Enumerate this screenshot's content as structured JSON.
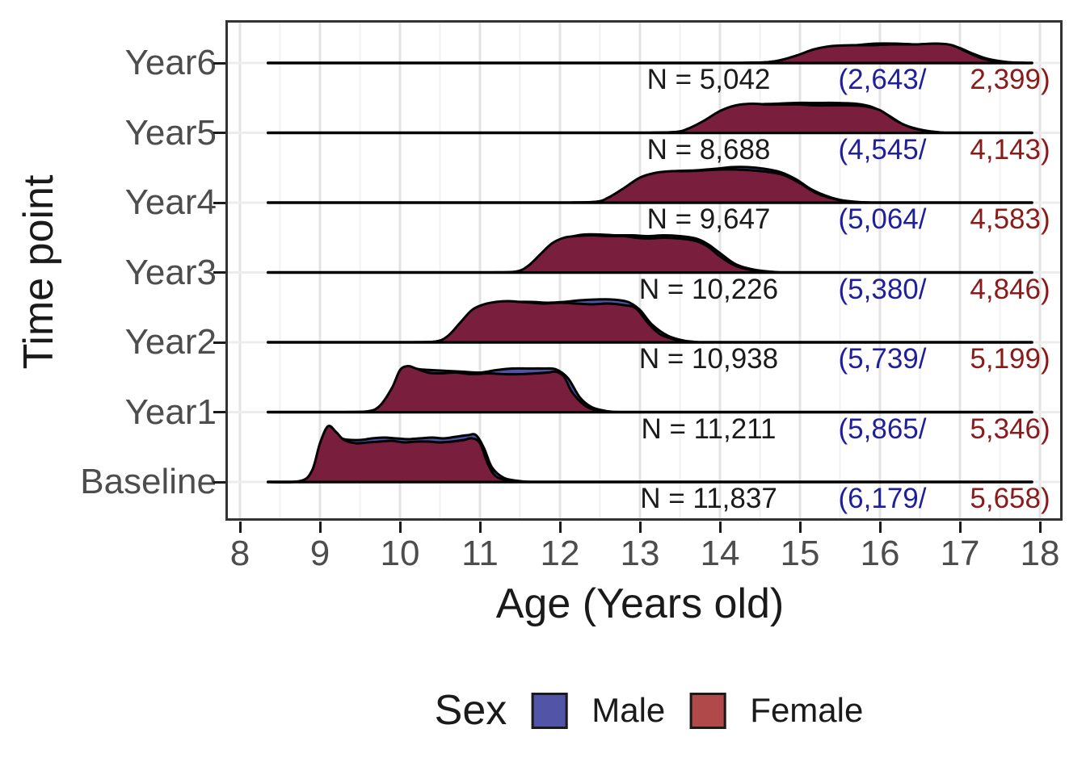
{
  "chart_data": {
    "type": "ridgeline",
    "title": "",
    "xlabel": "Age (Years old)",
    "ylabel": "Time point",
    "x_ticks": [
      "8",
      "9",
      "10",
      "11",
      "12",
      "13",
      "14",
      "15",
      "16",
      "17",
      "18"
    ],
    "x_range": [
      8,
      18
    ],
    "categories_top_to_bottom": [
      "Year6",
      "Year5",
      "Year4",
      "Year3",
      "Year2",
      "Year1",
      "Baseline"
    ],
    "grid": true,
    "legend_position": "bottom",
    "legend": {
      "title": "Sex",
      "items": [
        {
          "label": "Male",
          "color": "#5254A8"
        },
        {
          "label": "Female",
          "color": "#B04A4A"
        }
      ]
    },
    "colors": {
      "male_fill": "#5053A6",
      "female_fill": "#7A1E3D",
      "male_text": "#1F1F9C",
      "female_text": "#8B1A1A",
      "outline": "#000000",
      "axis_text": "#4D4D4D",
      "title_text": "#1A1A1A",
      "grid_major": "#E3E3E3",
      "grid_minor": "#F1F1F1",
      "grid_horizontal": "#ECECEC",
      "panel_border": "#333333"
    },
    "rows": [
      {
        "label": "Year6",
        "n": 5042,
        "male_n": 2643,
        "female_n": 2399,
        "n_label": "N = 5,042",
        "male_label": "(2,643/",
        "female_label": "2,399)",
        "age_span": [
          14.25,
          17.85
        ],
        "female_curve": [
          [
            14.25,
            0
          ],
          [
            14.6,
            1
          ],
          [
            14.78,
            4
          ],
          [
            14.98,
            10
          ],
          [
            15.18,
            17
          ],
          [
            15.4,
            21
          ],
          [
            15.65,
            22
          ],
          [
            15.9,
            22
          ],
          [
            16.15,
            23
          ],
          [
            16.45,
            23
          ],
          [
            16.7,
            24
          ],
          [
            16.9,
            22
          ],
          [
            17.1,
            13
          ],
          [
            17.3,
            5
          ],
          [
            17.55,
            1
          ],
          [
            17.85,
            0
          ]
        ],
        "male_curve": [
          [
            14.25,
            0
          ],
          [
            14.6,
            1
          ],
          [
            14.78,
            4
          ],
          [
            14.98,
            9
          ],
          [
            15.18,
            16
          ],
          [
            15.45,
            20
          ],
          [
            15.7,
            22
          ],
          [
            15.95,
            24
          ],
          [
            16.2,
            24
          ],
          [
            16.45,
            23
          ],
          [
            16.7,
            23
          ],
          [
            16.95,
            20
          ],
          [
            17.15,
            12
          ],
          [
            17.35,
            5
          ],
          [
            17.6,
            1
          ],
          [
            17.85,
            0
          ]
        ]
      },
      {
        "label": "Year5",
        "n": 8688,
        "male_n": 4545,
        "female_n": 4143,
        "n_label": "N = 8,688",
        "male_label": "(4,545/",
        "female_label": "4,143)",
        "age_span": [
          13.1,
          16.8
        ],
        "female_curve": [
          [
            13.1,
            0
          ],
          [
            13.45,
            1
          ],
          [
            13.6,
            5
          ],
          [
            13.8,
            15
          ],
          [
            14.0,
            27
          ],
          [
            14.2,
            34
          ],
          [
            14.4,
            36
          ],
          [
            14.6,
            35
          ],
          [
            14.8,
            35
          ],
          [
            15.0,
            35
          ],
          [
            15.2,
            34
          ],
          [
            15.4,
            34
          ],
          [
            15.6,
            34
          ],
          [
            15.8,
            33
          ],
          [
            16.0,
            28
          ],
          [
            16.2,
            15
          ],
          [
            16.4,
            6
          ],
          [
            16.6,
            2
          ],
          [
            16.8,
            0
          ]
        ],
        "male_curve": [
          [
            13.1,
            0
          ],
          [
            13.45,
            1
          ],
          [
            13.6,
            5
          ],
          [
            13.8,
            14
          ],
          [
            14.0,
            25
          ],
          [
            14.2,
            33
          ],
          [
            14.45,
            35
          ],
          [
            14.7,
            36
          ],
          [
            14.95,
            37
          ],
          [
            15.2,
            37
          ],
          [
            15.45,
            37
          ],
          [
            15.7,
            36
          ],
          [
            15.9,
            32
          ],
          [
            16.1,
            22
          ],
          [
            16.3,
            10
          ],
          [
            16.55,
            3
          ],
          [
            16.8,
            0
          ]
        ]
      },
      {
        "label": "Year4",
        "n": 9647,
        "male_n": 5064,
        "female_n": 4583,
        "n_label": "N = 9,647",
        "male_label": "(5,064/",
        "female_label": "4,583)",
        "age_span": [
          12.1,
          15.9
        ],
        "female_curve": [
          [
            12.1,
            0
          ],
          [
            12.45,
            1
          ],
          [
            12.6,
            6
          ],
          [
            12.8,
            18
          ],
          [
            13.0,
            31
          ],
          [
            13.2,
            37
          ],
          [
            13.4,
            39
          ],
          [
            13.6,
            39
          ],
          [
            13.8,
            40
          ],
          [
            14.0,
            41
          ],
          [
            14.2,
            41
          ],
          [
            14.4,
            40
          ],
          [
            14.6,
            38
          ],
          [
            14.8,
            34
          ],
          [
            15.0,
            24
          ],
          [
            15.2,
            12
          ],
          [
            15.45,
            4
          ],
          [
            15.7,
            1
          ],
          [
            15.9,
            0
          ]
        ],
        "male_curve": [
          [
            12.1,
            0
          ],
          [
            12.45,
            1
          ],
          [
            12.6,
            5
          ],
          [
            12.8,
            16
          ],
          [
            13.0,
            29
          ],
          [
            13.2,
            36
          ],
          [
            13.45,
            39
          ],
          [
            13.7,
            40
          ],
          [
            13.95,
            42
          ],
          [
            14.15,
            44
          ],
          [
            14.35,
            44
          ],
          [
            14.55,
            42
          ],
          [
            14.75,
            38
          ],
          [
            14.95,
            29
          ],
          [
            15.15,
            16
          ],
          [
            15.4,
            6
          ],
          [
            15.65,
            1
          ],
          [
            15.9,
            0
          ]
        ]
      },
      {
        "label": "Year3",
        "n": 10226,
        "male_n": 5380,
        "female_n": 4846,
        "n_label": "N = 10,226",
        "male_label": "(5,380/",
        "female_label": "4,846)",
        "age_span": [
          11.15,
          14.75
        ],
        "female_curve": [
          [
            11.15,
            0
          ],
          [
            11.45,
            1
          ],
          [
            11.6,
            8
          ],
          [
            11.75,
            22
          ],
          [
            11.9,
            36
          ],
          [
            12.05,
            43
          ],
          [
            12.2,
            45
          ],
          [
            12.4,
            46
          ],
          [
            12.6,
            45
          ],
          [
            12.8,
            45
          ],
          [
            12.95,
            43
          ],
          [
            13.1,
            42
          ],
          [
            13.3,
            43
          ],
          [
            13.5,
            42
          ],
          [
            13.7,
            39
          ],
          [
            13.85,
            32
          ],
          [
            14.0,
            20
          ],
          [
            14.2,
            8
          ],
          [
            14.45,
            2
          ],
          [
            14.7,
            0
          ]
        ],
        "male_curve": [
          [
            11.15,
            0
          ],
          [
            11.45,
            1
          ],
          [
            11.6,
            7
          ],
          [
            11.75,
            20
          ],
          [
            11.9,
            34
          ],
          [
            12.1,
            43
          ],
          [
            12.3,
            47
          ],
          [
            12.5,
            47
          ],
          [
            12.7,
            46
          ],
          [
            12.9,
            46
          ],
          [
            13.1,
            45
          ],
          [
            13.3,
            46
          ],
          [
            13.5,
            45
          ],
          [
            13.7,
            42
          ],
          [
            13.85,
            35
          ],
          [
            14.0,
            24
          ],
          [
            14.2,
            10
          ],
          [
            14.45,
            3
          ],
          [
            14.75,
            0
          ]
        ]
      },
      {
        "label": "Year2",
        "n": 10938,
        "male_n": 5739,
        "female_n": 5199,
        "n_label": "N = 10,938",
        "male_label": "(5,739/",
        "female_label": "5,199)",
        "age_span": [
          10.15,
          13.75
        ],
        "female_curve": [
          [
            10.15,
            0
          ],
          [
            10.45,
            1
          ],
          [
            10.6,
            8
          ],
          [
            10.75,
            24
          ],
          [
            10.9,
            40
          ],
          [
            11.05,
            47
          ],
          [
            11.2,
            50
          ],
          [
            11.35,
            51
          ],
          [
            11.5,
            50
          ],
          [
            11.65,
            49
          ],
          [
            11.8,
            48
          ],
          [
            12.0,
            49
          ],
          [
            12.2,
            48
          ],
          [
            12.4,
            47
          ],
          [
            12.6,
            48
          ],
          [
            12.8,
            46
          ],
          [
            12.95,
            42
          ],
          [
            13.1,
            24
          ],
          [
            13.25,
            10
          ],
          [
            13.45,
            3
          ],
          [
            13.65,
            0
          ]
        ],
        "male_curve": [
          [
            10.15,
            0
          ],
          [
            10.45,
            1
          ],
          [
            10.6,
            7
          ],
          [
            10.75,
            22
          ],
          [
            10.9,
            38
          ],
          [
            11.05,
            46
          ],
          [
            11.25,
            49
          ],
          [
            11.45,
            50
          ],
          [
            11.65,
            50
          ],
          [
            11.85,
            49
          ],
          [
            12.05,
            50
          ],
          [
            12.25,
            52
          ],
          [
            12.45,
            53
          ],
          [
            12.65,
            53
          ],
          [
            12.85,
            50
          ],
          [
            13.0,
            40
          ],
          [
            13.15,
            22
          ],
          [
            13.35,
            8
          ],
          [
            13.55,
            2
          ],
          [
            13.75,
            0
          ]
        ]
      },
      {
        "label": "Year1",
        "n": 11211,
        "male_n": 5865,
        "female_n": 5346,
        "n_label": "N = 11,211",
        "male_label": "(5,865/",
        "female_label": "5,346)",
        "age_span": [
          9.3,
          12.75
        ],
        "female_curve": [
          [
            9.3,
            0
          ],
          [
            9.6,
            1
          ],
          [
            9.75,
            8
          ],
          [
            9.9,
            30
          ],
          [
            10.0,
            52
          ],
          [
            10.1,
            57
          ],
          [
            10.2,
            54
          ],
          [
            10.35,
            49
          ],
          [
            10.5,
            48
          ],
          [
            10.7,
            49
          ],
          [
            10.9,
            47
          ],
          [
            11.1,
            48
          ],
          [
            11.3,
            47
          ],
          [
            11.5,
            47
          ],
          [
            11.7,
            48
          ],
          [
            11.85,
            49
          ],
          [
            11.95,
            50
          ],
          [
            12.05,
            44
          ],
          [
            12.15,
            25
          ],
          [
            12.3,
            9
          ],
          [
            12.45,
            2
          ],
          [
            12.65,
            0
          ]
        ],
        "male_curve": [
          [
            9.3,
            0
          ],
          [
            9.6,
            1
          ],
          [
            9.75,
            7
          ],
          [
            9.9,
            28
          ],
          [
            10.0,
            50
          ],
          [
            10.1,
            55
          ],
          [
            10.25,
            53
          ],
          [
            10.4,
            52
          ],
          [
            10.6,
            51
          ],
          [
            10.8,
            50
          ],
          [
            11.0,
            49
          ],
          [
            11.2,
            52
          ],
          [
            11.4,
            54
          ],
          [
            11.6,
            54
          ],
          [
            11.8,
            54
          ],
          [
            11.95,
            53
          ],
          [
            12.1,
            42
          ],
          [
            12.25,
            18
          ],
          [
            12.4,
            6
          ],
          [
            12.6,
            1
          ],
          [
            12.75,
            0
          ]
        ]
      },
      {
        "label": "Baseline",
        "n": 11837,
        "male_n": 6179,
        "female_n": 5658,
        "n_label": "N = 11,837",
        "male_label": "(6,179/",
        "female_label": "5,658)",
        "age_span": [
          8.35,
          11.65
        ],
        "female_curve": [
          [
            8.35,
            0
          ],
          [
            8.75,
            1
          ],
          [
            8.9,
            14
          ],
          [
            9.0,
            48
          ],
          [
            9.1,
            69
          ],
          [
            9.2,
            62
          ],
          [
            9.3,
            52
          ],
          [
            9.45,
            48
          ],
          [
            9.6,
            49
          ],
          [
            9.75,
            50
          ],
          [
            9.9,
            51
          ],
          [
            10.05,
            49
          ],
          [
            10.2,
            50
          ],
          [
            10.35,
            50
          ],
          [
            10.5,
            49
          ],
          [
            10.65,
            50
          ],
          [
            10.8,
            52
          ],
          [
            10.9,
            54
          ],
          [
            11.0,
            48
          ],
          [
            11.1,
            22
          ],
          [
            11.2,
            7
          ],
          [
            11.35,
            2
          ],
          [
            11.55,
            0
          ]
        ],
        "male_curve": [
          [
            8.35,
            0
          ],
          [
            8.75,
            1
          ],
          [
            8.9,
            13
          ],
          [
            9.0,
            46
          ],
          [
            9.1,
            66
          ],
          [
            9.2,
            60
          ],
          [
            9.3,
            53
          ],
          [
            9.5,
            52
          ],
          [
            9.65,
            54
          ],
          [
            9.8,
            55
          ],
          [
            9.95,
            54
          ],
          [
            10.1,
            53
          ],
          [
            10.25,
            54
          ],
          [
            10.4,
            55
          ],
          [
            10.55,
            54
          ],
          [
            10.7,
            56
          ],
          [
            10.85,
            58
          ],
          [
            10.95,
            58
          ],
          [
            11.05,
            42
          ],
          [
            11.15,
            18
          ],
          [
            11.3,
            5
          ],
          [
            11.5,
            1
          ],
          [
            11.65,
            0
          ]
        ]
      }
    ]
  }
}
